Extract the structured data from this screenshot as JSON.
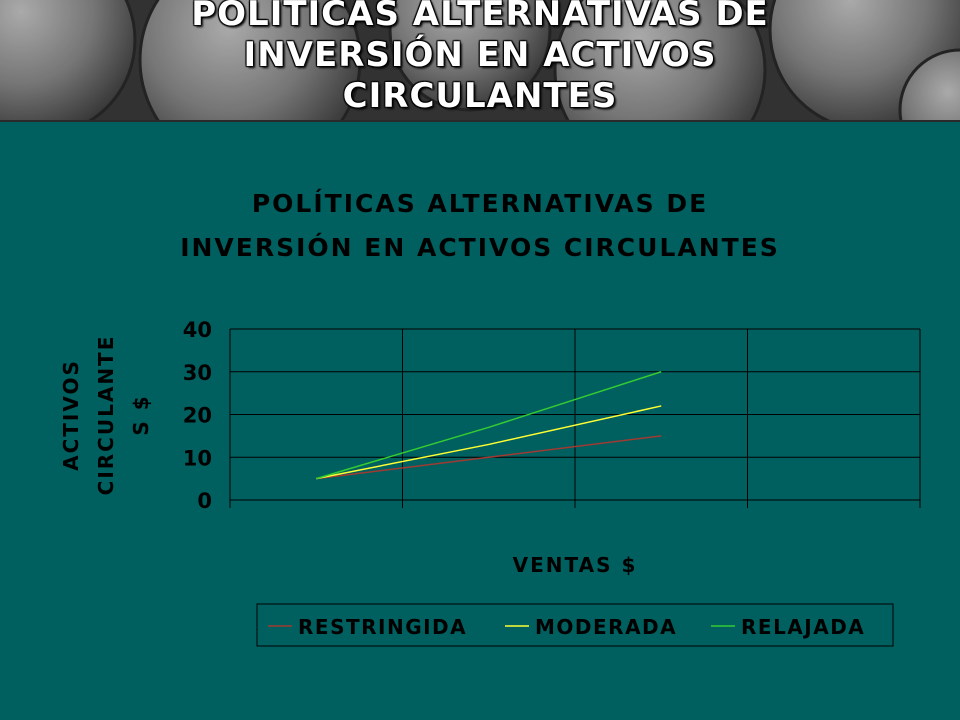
{
  "slide": {
    "title_lines": [
      "POLÍTICAS ALTERNATIVAS DE",
      "INVERSIÓN EN ACTIVOS",
      "CIRCULANTES"
    ]
  },
  "colors": {
    "background": "#005f5f",
    "gridline": "#000000",
    "series": [
      "#a03a32",
      "#ffff33",
      "#33cc33"
    ]
  },
  "chart_data": {
    "type": "line",
    "title_lines": [
      "POLÍTICAS ALTERNATIVAS DE",
      "INVERSIÓN EN ACTIVOS CIRCULANTES"
    ],
    "ylabel_lines": [
      "ACTIVOS",
      "CIRCULANTE",
      "S $"
    ],
    "xlabel": "VENTAS $",
    "categories": [
      "",
      "",
      "",
      ""
    ],
    "ylim": [
      0,
      40
    ],
    "yticks": [
      0,
      10,
      20,
      30,
      40
    ],
    "grid": true,
    "legend_position": "bottom",
    "series": [
      {
        "name": "RESTRINGIDA",
        "x": [
          0.5,
          1.5,
          2.5
        ],
        "values": [
          5,
          10,
          15
        ]
      },
      {
        "name": "MODERADA",
        "x": [
          0.5,
          1.5,
          2.5
        ],
        "values": [
          5,
          13,
          22
        ]
      },
      {
        "name": "RELAJADA",
        "x": [
          0.5,
          1.5,
          2.5
        ],
        "values": [
          5,
          17,
          30
        ]
      }
    ]
  }
}
